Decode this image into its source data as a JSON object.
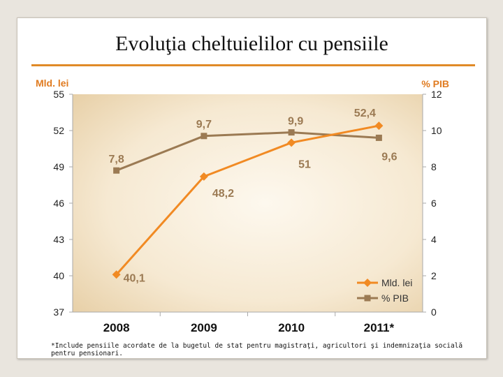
{
  "slide": {
    "title": "Evoluţia cheltuielilor cu pensiile",
    "footnote": "*Include pensiile acordate de la bugetul de stat pentru magistraţi, agricultori şi indemnizaţia socială pentru pensionari."
  },
  "colors": {
    "accent": "#e08a27",
    "series_lei": "#f18a23",
    "series_pib": "#9b7a53",
    "axis_label": "#e07b20",
    "data_label": "#9b7a53"
  },
  "chart_data": {
    "type": "line",
    "title": "Evoluţia cheltuielilor cu pensiile",
    "categories": [
      "2008",
      "2009",
      "2010",
      "2011*"
    ],
    "y_left": {
      "label": "Mld. lei",
      "ticks": [
        "55",
        "52",
        "49",
        "46",
        "43",
        "40",
        "37"
      ],
      "range": [
        37,
        55
      ]
    },
    "y_right": {
      "label": "% PIB",
      "ticks": [
        "12",
        "10",
        "8",
        "6",
        "4",
        "2",
        "0"
      ],
      "range": [
        0,
        12
      ]
    },
    "series": [
      {
        "name": "Mld. lei",
        "axis": "left",
        "values": [
          40.1,
          48.2,
          51,
          52.4
        ],
        "labels": [
          "40,1",
          "48,2",
          "51",
          "52,4"
        ]
      },
      {
        "name": "% PIB",
        "axis": "right",
        "values": [
          7.8,
          9.7,
          9.9,
          9.6
        ],
        "labels": [
          "7,8",
          "9,7",
          "9,9",
          "9,6"
        ]
      }
    ],
    "legend_position": "bottom-right"
  }
}
